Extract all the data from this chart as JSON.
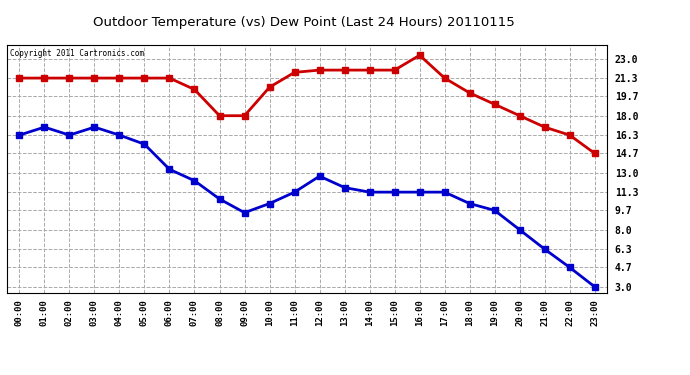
{
  "title": "Outdoor Temperature (vs) Dew Point (Last 24 Hours) 20110115",
  "copyright": "Copyright 2011 Cartronics.com",
  "hours": [
    "00:00",
    "01:00",
    "02:00",
    "03:00",
    "04:00",
    "05:00",
    "06:00",
    "07:00",
    "08:00",
    "09:00",
    "10:00",
    "11:00",
    "12:00",
    "13:00",
    "14:00",
    "15:00",
    "16:00",
    "17:00",
    "18:00",
    "19:00",
    "20:00",
    "21:00",
    "22:00",
    "23:00"
  ],
  "temp": [
    21.3,
    21.3,
    21.3,
    21.3,
    21.3,
    21.3,
    21.3,
    20.3,
    18.0,
    18.0,
    20.5,
    21.8,
    22.0,
    22.0,
    22.0,
    22.0,
    23.3,
    21.3,
    20.0,
    19.0,
    18.0,
    17.0,
    16.3,
    14.7
  ],
  "dew": [
    16.3,
    17.0,
    16.3,
    17.0,
    16.3,
    15.5,
    13.3,
    12.3,
    10.7,
    9.5,
    10.3,
    11.3,
    12.7,
    11.7,
    11.3,
    11.3,
    11.3,
    11.3,
    10.3,
    9.7,
    8.0,
    6.3,
    4.7,
    3.0
  ],
  "temp_color": "#cc0000",
  "dew_color": "#0000cc",
  "bg_color": "#ffffff",
  "grid_color": "#aaaaaa",
  "yticks": [
    3.0,
    4.7,
    6.3,
    8.0,
    9.7,
    11.3,
    13.0,
    14.7,
    16.3,
    18.0,
    19.7,
    21.3,
    23.0
  ],
  "ylim": [
    2.5,
    24.2
  ],
  "linewidth": 2.0,
  "markersize": 4
}
